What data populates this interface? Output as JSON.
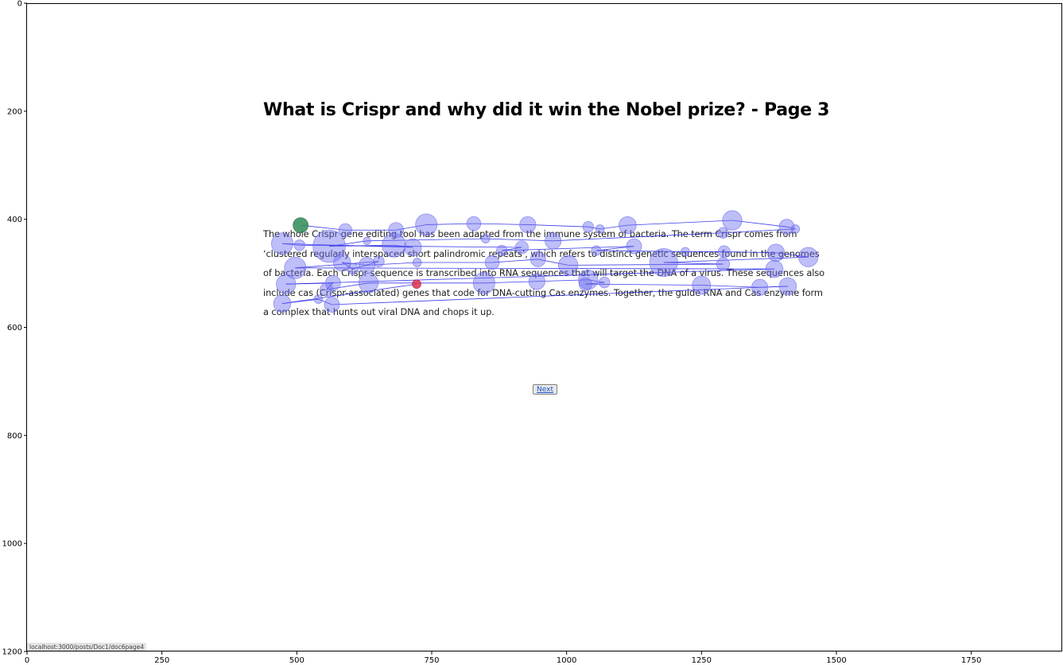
{
  "document": {
    "title": "What is Crispr and why did it win the Nobel prize? - Page 3",
    "body": "The whole Crispr gene editing tool has been adapted from the immune system of bacteria. The term Crispr comes from ‘clustered regularly interspaced short palindromic repeats’, which refers to distinct genetic sequences found in the genomes of bacteria. Each Crispr sequence is transcribed into RNA sequences that will target the DNA of a virus. These sequences also include cas (Crispr-associated) genes that code for DNA-cutting Cas enzymes. Together, the guide RNA and Cas enzyme form a complex that hunts out viral DNA and chops it up.",
    "next_label": "Next",
    "status_url": "localhost:3000/posts/Doc1/doc6page4"
  },
  "chart_data": {
    "type": "scatter",
    "title": "",
    "xlabel": "",
    "ylabel": "",
    "xlim": [
      0,
      1920
    ],
    "ylim": [
      1200,
      0
    ],
    "grid": false,
    "x_ticks": [
      0,
      250,
      500,
      750,
      1000,
      1250,
      1500,
      1750
    ],
    "y_ticks": [
      0,
      200,
      400,
      600,
      800,
      1000,
      1200
    ],
    "colors": {
      "fixation": "#6f6ff0",
      "scanpath": "#1a1ae6",
      "start": "#2e8b57",
      "end": "#e0304e"
    },
    "series": [
      {
        "points": [
          {
            "x": 507,
            "y": 411,
            "r": 14,
            "role": "start"
          },
          {
            "x": 590,
            "y": 420,
            "r": 12
          },
          {
            "x": 684,
            "y": 420,
            "r": 14
          },
          {
            "x": 740,
            "y": 410,
            "r": 20
          },
          {
            "x": 828,
            "y": 408,
            "r": 13
          },
          {
            "x": 928,
            "y": 410,
            "r": 15
          },
          {
            "x": 1040,
            "y": 414,
            "r": 10
          },
          {
            "x": 1062,
            "y": 418,
            "r": 8
          },
          {
            "x": 1113,
            "y": 411,
            "r": 16
          },
          {
            "x": 1307,
            "y": 402,
            "r": 18
          },
          {
            "x": 1408,
            "y": 414,
            "r": 14
          },
          {
            "x": 1424,
            "y": 418,
            "r": 8
          },
          {
            "x": 1290,
            "y": 425,
            "r": 10
          },
          {
            "x": 975,
            "y": 440,
            "r": 15
          },
          {
            "x": 850,
            "y": 436,
            "r": 8
          },
          {
            "x": 630,
            "y": 440,
            "r": 7
          },
          {
            "x": 560,
            "y": 450,
            "r": 30
          },
          {
            "x": 680,
            "y": 448,
            "r": 22
          },
          {
            "x": 715,
            "y": 452,
            "r": 16
          },
          {
            "x": 473,
            "y": 445,
            "r": 20
          },
          {
            "x": 505,
            "y": 448,
            "r": 10
          },
          {
            "x": 917,
            "y": 452,
            "r": 12
          },
          {
            "x": 880,
            "y": 458,
            "r": 10
          },
          {
            "x": 1125,
            "y": 450,
            "r": 14
          },
          {
            "x": 1055,
            "y": 458,
            "r": 9
          },
          {
            "x": 1220,
            "y": 460,
            "r": 8
          },
          {
            "x": 1292,
            "y": 460,
            "r": 11
          },
          {
            "x": 1388,
            "y": 462,
            "r": 16
          },
          {
            "x": 1448,
            "y": 470,
            "r": 18
          },
          {
            "x": 1180,
            "y": 480,
            "r": 26
          },
          {
            "x": 1290,
            "y": 483,
            "r": 12
          },
          {
            "x": 1003,
            "y": 485,
            "r": 18
          },
          {
            "x": 947,
            "y": 474,
            "r": 14
          },
          {
            "x": 862,
            "y": 480,
            "r": 13
          },
          {
            "x": 723,
            "y": 480,
            "r": 8
          },
          {
            "x": 630,
            "y": 485,
            "r": 15
          },
          {
            "x": 584,
            "y": 480,
            "r": 16
          },
          {
            "x": 604,
            "y": 492,
            "r": 10
          },
          {
            "x": 652,
            "y": 478,
            "r": 10
          },
          {
            "x": 497,
            "y": 490,
            "r": 20
          },
          {
            "x": 1385,
            "y": 492,
            "r": 16
          },
          {
            "x": 480,
            "y": 520,
            "r": 18
          },
          {
            "x": 567,
            "y": 518,
            "r": 14
          },
          {
            "x": 555,
            "y": 530,
            "r": 12
          },
          {
            "x": 633,
            "y": 518,
            "r": 18
          },
          {
            "x": 847,
            "y": 518,
            "r": 20
          },
          {
            "x": 945,
            "y": 515,
            "r": 15
          },
          {
            "x": 1040,
            "y": 512,
            "r": 18
          },
          {
            "x": 1070,
            "y": 517,
            "r": 10
          },
          {
            "x": 1035,
            "y": 520,
            "r": 12
          },
          {
            "x": 1250,
            "y": 522,
            "r": 17
          },
          {
            "x": 1358,
            "y": 526,
            "r": 15
          },
          {
            "x": 1410,
            "y": 524,
            "r": 16
          },
          {
            "x": 565,
            "y": 558,
            "r": 14
          },
          {
            "x": 540,
            "y": 548,
            "r": 8
          },
          {
            "x": 473,
            "y": 556,
            "r": 16
          },
          {
            "x": 722,
            "y": 520,
            "r": 8,
            "role": "end"
          }
        ]
      }
    ]
  }
}
